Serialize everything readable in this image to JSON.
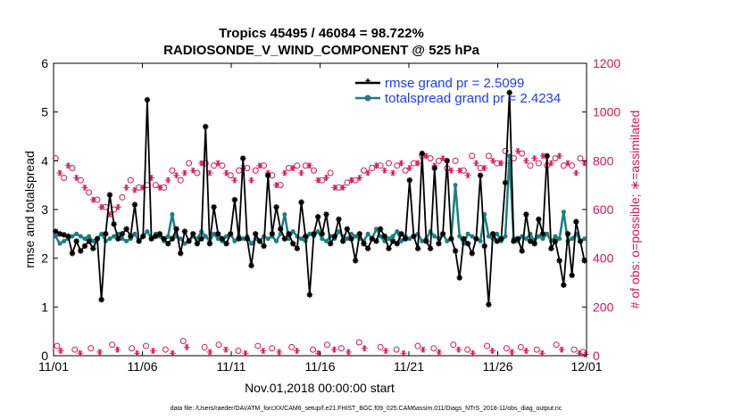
{
  "chart_data": {
    "type": "line",
    "title": "Tropics 45495 / 46084 = 98.722%",
    "subtitle": "RADIOSONDE_V_WIND_COMPONENT @ 525 hPa",
    "xlabel": "Nov.01,2018 00:00:00 start",
    "ylabel": "rmse and totalspread",
    "ylabel_right": "# of obs: o=possible; ∗=assimilated",
    "xlim": [
      0,
      30
    ],
    "ylim": [
      0,
      6
    ],
    "ylim_right": [
      0,
      1200
    ],
    "x_ticks": [
      0,
      5,
      10,
      15,
      20,
      25,
      30
    ],
    "x_tick_labels": [
      "11/01",
      "11/06",
      "11/11",
      "11/16",
      "11/21",
      "11/26",
      "12/01"
    ],
    "y_ticks": [
      0,
      1,
      2,
      3,
      4,
      5,
      6
    ],
    "y_ticks_right": [
      0,
      200,
      400,
      600,
      800,
      1000,
      1200
    ],
    "footnote": "data file: /Users/raeder/DAI/ATM_forcXX/CAM6_setup/f.e21.FHIST_BGC.f09_025.CAM6assim.011/Diags_NTrS_2018-11/obs_diag_output.nc",
    "colors": {
      "rmse": "#000000",
      "spread": "#1a7f7f",
      "obs": "#d4145a",
      "legend_text": "#1a3cff"
    },
    "series": [
      {
        "name": "rmse",
        "legend": "rmse grand pr = 2.5099",
        "values": [
          2.55,
          2.5,
          2.48,
          2.45,
          2.1,
          2.35,
          2.15,
          2.25,
          2.35,
          2.2,
          2.4,
          1.15,
          2.5,
          3.3,
          2.7,
          2.4,
          2.5,
          2.6,
          2.45,
          3.1,
          2.35,
          2.45,
          5.25,
          2.4,
          2.45,
          2.5,
          2.4,
          2.3,
          2.4,
          2.6,
          2.1,
          2.55,
          2.35,
          2.5,
          2.3,
          2.4,
          4.7,
          2.3,
          3.05,
          2.5,
          2.4,
          2.3,
          2.5,
          3.2,
          2.4,
          4.05,
          2.4,
          1.85,
          2.5,
          2.35,
          2.25,
          3.7,
          2.5,
          3.05,
          2.6,
          2.4,
          2.5,
          2.3,
          2.2,
          3.15,
          2.45,
          1.25,
          2.5,
          2.85,
          2.5,
          2.9,
          2.3,
          2.45,
          2.8,
          2.35,
          2.6,
          2.4,
          1.95,
          2.5,
          2.3,
          2.2,
          2.4,
          2.35,
          2.6,
          2.45,
          2.2,
          2.35,
          2.3,
          2.5,
          2.4,
          3.6,
          2.45,
          2.2,
          4.15,
          2.35,
          2.2,
          3.85,
          2.3,
          2.5,
          4.0,
          2.4,
          2.15,
          1.6,
          2.4,
          2.3,
          2.1,
          2.4,
          3.7,
          2.25,
          1.05,
          2.5,
          2.35,
          2.4,
          3.55,
          5.4,
          2.35,
          2.4,
          2.15,
          2.9,
          2.35,
          2.3,
          2.8,
          2.5,
          4.1,
          2.2,
          2.35,
          1.95,
          1.45,
          2.5,
          1.65,
          2.75,
          2.35,
          1.95
        ]
      },
      {
        "name": "totalspread",
        "legend": "totalspread grand pr = 2.4234",
        "values": [
          2.45,
          2.3,
          2.35,
          2.4,
          2.45,
          2.5,
          2.45,
          2.4,
          2.45,
          2.35,
          2.4,
          2.5,
          2.35,
          2.4,
          2.45,
          2.5,
          2.4,
          2.35,
          2.4,
          2.5,
          2.35,
          2.45,
          2.55,
          2.4,
          2.5,
          2.45,
          2.35,
          2.45,
          2.9,
          2.45,
          2.4,
          2.3,
          2.35,
          2.45,
          2.4,
          2.55,
          2.45,
          2.35,
          2.5,
          2.4,
          2.35,
          2.45,
          2.5,
          2.35,
          2.45,
          2.4,
          2.45,
          2.3,
          2.4,
          2.35,
          2.45,
          2.4,
          2.45,
          2.35,
          2.5,
          2.9,
          2.4,
          2.55,
          2.45,
          2.4,
          2.35,
          2.5,
          2.45,
          2.55,
          2.4,
          2.35,
          2.45,
          2.4,
          2.55,
          2.45,
          2.4,
          2.5,
          2.45,
          2.4,
          2.35,
          2.5,
          2.4,
          2.6,
          2.45,
          2.35,
          2.4,
          2.45,
          2.55,
          2.35,
          2.45,
          2.4,
          2.45,
          2.5,
          2.35,
          2.4,
          2.55,
          2.45,
          2.4,
          2.5,
          2.35,
          2.4,
          3.5,
          2.45,
          2.3,
          2.5,
          2.45,
          2.4,
          2.35,
          2.9,
          2.45,
          2.4,
          2.5,
          2.35,
          2.45,
          4.1,
          2.4,
          2.35,
          2.45,
          2.4,
          2.5,
          2.35,
          2.45,
          2.4,
          2.5,
          2.35,
          2.45,
          2.4,
          2.95,
          2.35,
          2.4,
          2.5,
          2.35,
          2.4
        ]
      }
    ],
    "obs_possible": [
      810,
      760,
      730,
      790,
      770,
      740,
      720,
      700,
      670,
      650,
      640,
      620,
      610,
      590,
      600,
      620,
      650,
      700,
      720,
      690,
      690,
      700,
      700,
      740,
      700,
      700,
      690,
      730,
      760,
      750,
      720,
      760,
      790,
      770,
      750,
      800,
      790,
      760,
      780,
      800,
      780,
      760,
      740,
      730,
      760,
      780,
      770,
      730,
      760,
      790,
      780,
      760,
      740,
      710,
      700,
      760,
      770,
      780,
      780,
      760,
      780,
      790,
      760,
      730,
      720,
      740,
      750,
      700,
      690,
      700,
      710,
      730,
      720,
      740,
      760,
      760,
      770,
      790,
      780,
      770,
      790,
      760,
      780,
      800,
      760,
      780,
      790,
      800,
      820,
      830,
      810,
      790,
      800,
      820,
      770,
      770,
      800,
      770,
      760,
      750,
      820,
      800,
      770,
      780,
      820,
      810,
      790,
      800,
      840,
      800,
      810,
      850,
      830,
      810,
      780,
      820,
      790,
      830,
      780,
      800,
      810,
      830,
      780,
      800,
      780,
      760,
      810,
      800
    ],
    "obs_assimilated": [
      800,
      750,
      720,
      780,
      760,
      730,
      710,
      690,
      660,
      640,
      630,
      610,
      600,
      580,
      590,
      610,
      640,
      690,
      710,
      680,
      680,
      690,
      690,
      730,
      690,
      690,
      680,
      720,
      750,
      740,
      710,
      750,
      780,
      760,
      740,
      790,
      780,
      750,
      770,
      790,
      770,
      750,
      730,
      720,
      750,
      770,
      760,
      720,
      750,
      780,
      770,
      750,
      730,
      700,
      690,
      750,
      760,
      770,
      770,
      750,
      770,
      780,
      750,
      720,
      710,
      730,
      740,
      690,
      680,
      690,
      700,
      720,
      710,
      730,
      750,
      750,
      760,
      780,
      770,
      760,
      780,
      750,
      770,
      790,
      750,
      770,
      780,
      790,
      810,
      820,
      800,
      780,
      790,
      810,
      760,
      760,
      790,
      760,
      750,
      740,
      810,
      790,
      760,
      770,
      810,
      800,
      780,
      790,
      830,
      790,
      800,
      840,
      820,
      800,
      770,
      810,
      780,
      820,
      770,
      790,
      800,
      820,
      770,
      790,
      770,
      750,
      800,
      790
    ],
    "obs_low_possible": [
      [
        0.2,
        40
      ],
      [
        1.2,
        25
      ],
      [
        2.1,
        30
      ],
      [
        3.3,
        45
      ],
      [
        4.4,
        30
      ],
      [
        5.2,
        40
      ],
      [
        6.3,
        25
      ],
      [
        7.3,
        60
      ],
      [
        8.5,
        35
      ],
      [
        9.3,
        45
      ],
      [
        10.4,
        20
      ],
      [
        11.5,
        40
      ],
      [
        12.3,
        30
      ],
      [
        13.4,
        35
      ],
      [
        14.6,
        25
      ],
      [
        15.4,
        45
      ],
      [
        16.2,
        30
      ],
      [
        17.2,
        55
      ],
      [
        18.4,
        35
      ],
      [
        19.3,
        25
      ],
      [
        20.5,
        40
      ],
      [
        21.4,
        30
      ],
      [
        22.5,
        45
      ],
      [
        23.3,
        25
      ],
      [
        24.4,
        40
      ],
      [
        25.5,
        30
      ],
      [
        26.3,
        35
      ],
      [
        27.2,
        25
      ],
      [
        28.3,
        45
      ],
      [
        29.3,
        25
      ],
      [
        29.8,
        15
      ]
    ],
    "obs_low_assimilated": [
      [
        0.4,
        20
      ],
      [
        1.5,
        10
      ],
      [
        2.6,
        15
      ],
      [
        3.6,
        25
      ],
      [
        4.7,
        10
      ],
      [
        5.6,
        20
      ],
      [
        6.7,
        10
      ],
      [
        7.5,
        35
      ],
      [
        8.8,
        15
      ],
      [
        9.7,
        25
      ],
      [
        10.8,
        10
      ],
      [
        11.8,
        20
      ],
      [
        12.7,
        15
      ],
      [
        13.7,
        20
      ],
      [
        14.9,
        10
      ],
      [
        15.8,
        25
      ],
      [
        16.6,
        15
      ],
      [
        17.5,
        30
      ],
      [
        18.7,
        20
      ],
      [
        19.7,
        10
      ],
      [
        20.8,
        25
      ],
      [
        21.7,
        15
      ],
      [
        22.8,
        25
      ],
      [
        23.6,
        10
      ],
      [
        24.7,
        20
      ],
      [
        25.8,
        15
      ],
      [
        26.6,
        20
      ],
      [
        27.5,
        10
      ],
      [
        28.6,
        25
      ],
      [
        29.6,
        10
      ],
      [
        29.95,
        5
      ]
    ]
  }
}
